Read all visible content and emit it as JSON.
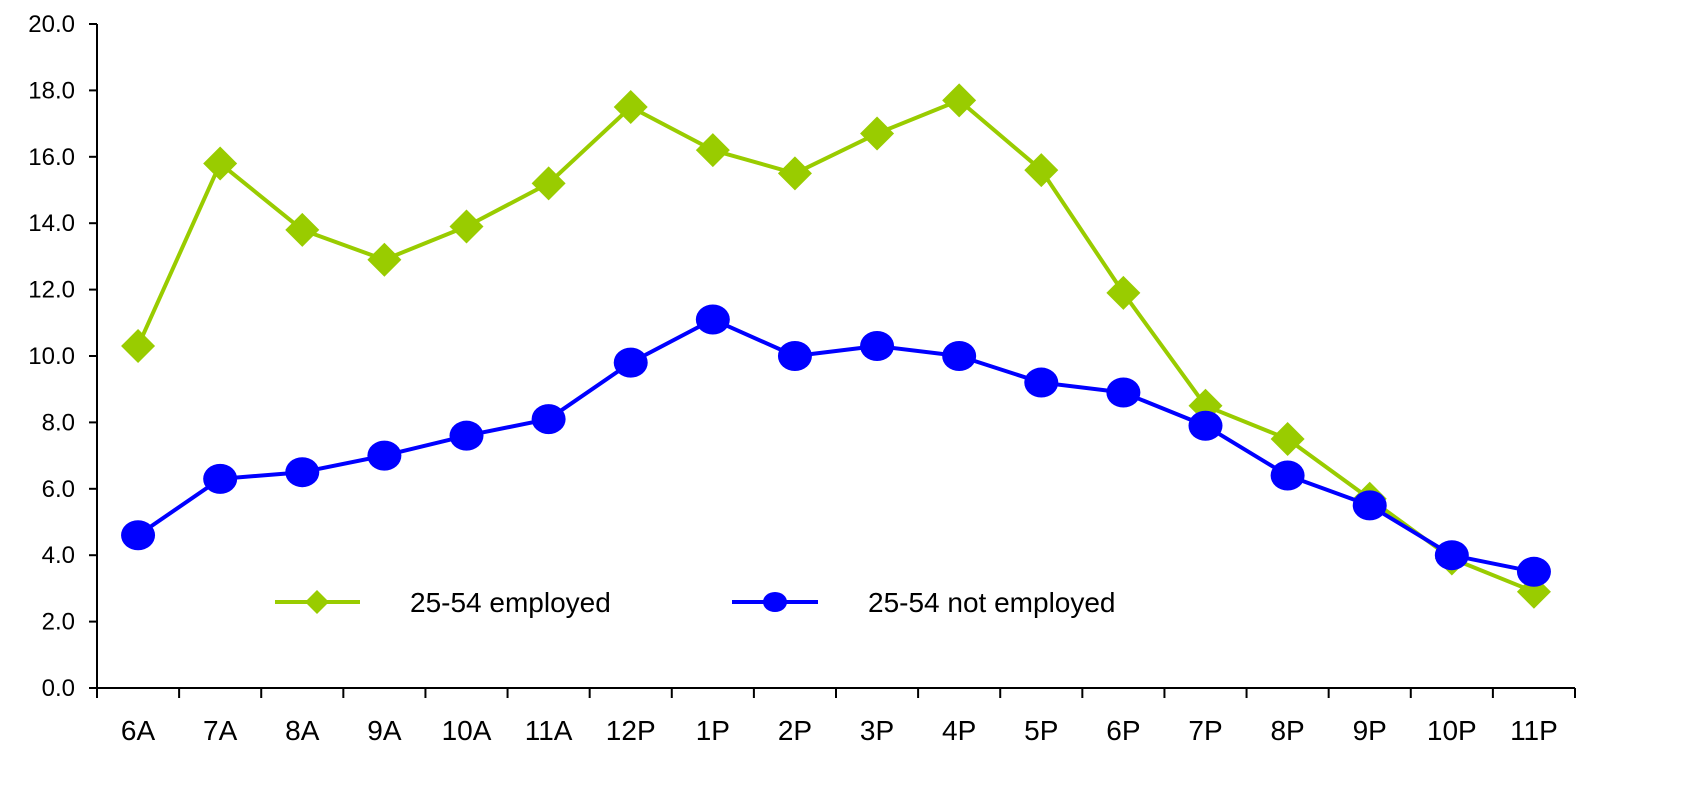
{
  "chart_data": {
    "type": "line",
    "categories": [
      "6A",
      "7A",
      "8A",
      "9A",
      "10A",
      "11A",
      "12P",
      "1P",
      "2P",
      "3P",
      "4P",
      "5P",
      "6P",
      "7P",
      "8P",
      "9P",
      "10P",
      "11P"
    ],
    "series": [
      {
        "name": "25-54 employed",
        "color": "#99CC00",
        "marker": "diamond",
        "values": [
          10.3,
          15.8,
          13.8,
          12.9,
          13.9,
          15.2,
          17.5,
          16.2,
          15.5,
          16.7,
          17.7,
          15.6,
          11.9,
          8.5,
          7.5,
          5.7,
          3.9,
          2.9
        ]
      },
      {
        "name": "25-54 not employed",
        "color": "#0000FF",
        "marker": "circle",
        "values": [
          4.6,
          6.3,
          6.5,
          7.0,
          7.6,
          8.1,
          9.8,
          11.1,
          10.0,
          10.3,
          10.0,
          9.2,
          8.9,
          7.9,
          6.4,
          5.5,
          4.0,
          3.5
        ]
      }
    ],
    "ylim": [
      0,
      20
    ],
    "yticks": [
      "0.0",
      "2.0",
      "4.0",
      "6.0",
      "8.0",
      "10.0",
      "12.0",
      "14.0",
      "16.0",
      "18.0",
      "20.0"
    ],
    "title": "",
    "xlabel": "",
    "ylabel": "",
    "grid": false,
    "legend_position": "inside-bottom"
  }
}
